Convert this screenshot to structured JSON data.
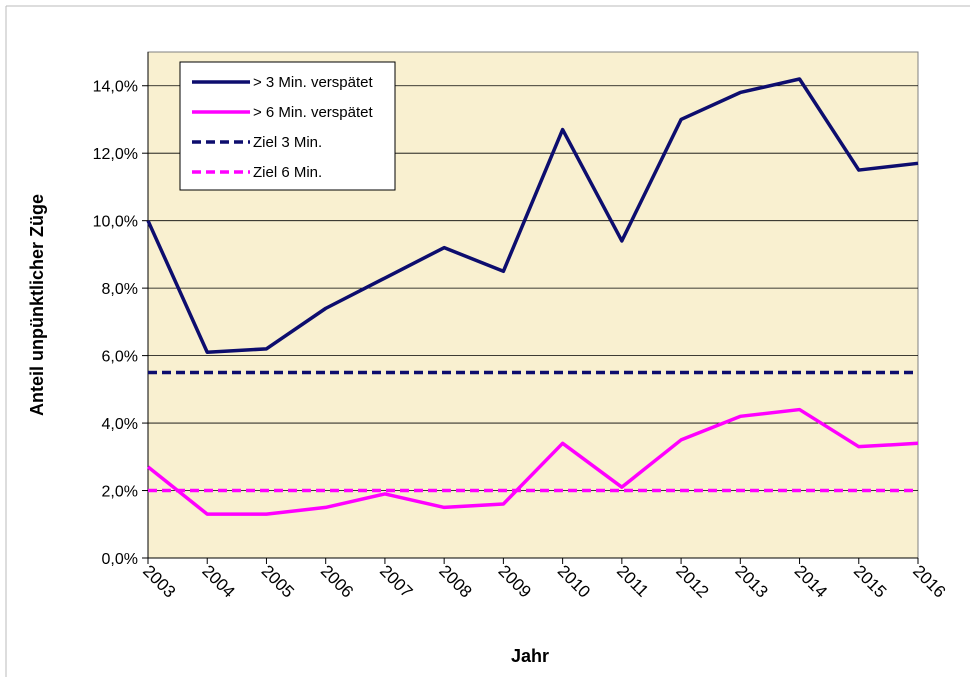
{
  "chart_data": {
    "type": "line",
    "x_label": "Jahr",
    "y_label": "Anteil unpünktlicher Züge",
    "categories": [
      "2003",
      "2004",
      "2005",
      "2006",
      "2007",
      "2008",
      "2009",
      "2010",
      "2011",
      "2012",
      "2013",
      "2014",
      "2015",
      "2016"
    ],
    "series": [
      {
        "name": "> 3 Min. verspätet",
        "color": "#0d0d6e",
        "dashed": false,
        "values": [
          10.0,
          6.1,
          6.2,
          7.4,
          8.3,
          9.2,
          8.5,
          12.7,
          9.4,
          13.0,
          13.8,
          14.2,
          11.5,
          11.7
        ]
      },
      {
        "name": "> 6 Min. verspätet",
        "color": "#ff00ff",
        "dashed": false,
        "values": [
          2.7,
          1.3,
          1.3,
          1.5,
          1.9,
          1.5,
          1.6,
          3.4,
          2.1,
          3.5,
          4.2,
          4.4,
          3.3,
          3.4
        ]
      },
      {
        "name": "Ziel 3 Min.",
        "color": "#0d0d6e",
        "dashed": true,
        "values": [
          5.5,
          5.5,
          5.5,
          5.5,
          5.5,
          5.5,
          5.5,
          5.5,
          5.5,
          5.5,
          5.5,
          5.5,
          5.5,
          5.5
        ]
      },
      {
        "name": "Ziel 6 Min.",
        "color": "#ff00ff",
        "dashed": true,
        "values": [
          2.0,
          2.0,
          2.0,
          2.0,
          2.0,
          2.0,
          2.0,
          2.0,
          2.0,
          2.0,
          2.0,
          2.0,
          2.0,
          2.0
        ]
      }
    ],
    "ylim": [
      0,
      15
    ],
    "yticks": [
      {
        "value": 0,
        "label": "0,0%"
      },
      {
        "value": 2,
        "label": "2,0%"
      },
      {
        "value": 4,
        "label": "4,0%"
      },
      {
        "value": 6,
        "label": "6,0%"
      },
      {
        "value": 8,
        "label": "8,0%"
      },
      {
        "value": 10,
        "label": "10,0%"
      },
      {
        "value": 12,
        "label": "12,0%"
      },
      {
        "value": 14,
        "label": "14,0%"
      }
    ],
    "grid": true,
    "plot_background": "#f9f0d0",
    "legend_position": "upper left"
  }
}
